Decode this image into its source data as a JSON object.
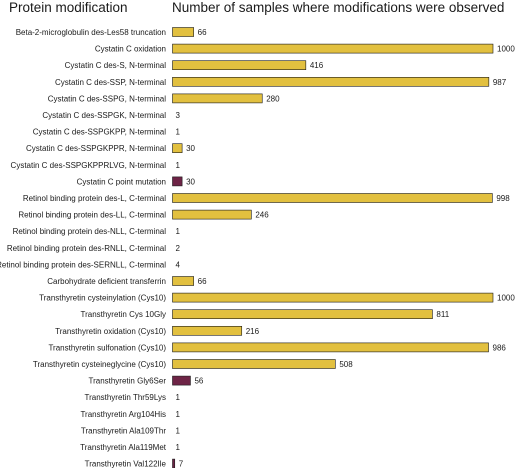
{
  "chart_data": {
    "type": "bar",
    "orientation": "horizontal",
    "header_left": "Protein modification",
    "header_right": "Number of samples where modifications were observed",
    "xlim": [
      0,
      1000
    ],
    "colors": {
      "default": "#e2c03f",
      "highlight": "#6e2446",
      "stroke": "#1a1a1a"
    },
    "categories": [
      "Beta-2-microglobulin des-Les58 truncation",
      "Cystatin C oxidation",
      "Cystatin C des-S, N-terminal",
      "Cystatin C des-SSP, N-terminal",
      "Cystatin C des-SSPG, N-terminal",
      "Cystatin C des-SSPGK, N-terminal",
      "Cystatin C des-SSPGKPP, N-terminal",
      "Cystatin C des-SSPGKPPR, N-terminal",
      "Cystatin C des-SSPGKPPRLVG, N-terminal",
      "Cystatin C point mutation",
      "Retinol binding protein des-L, C-terminal",
      "Retinol binding protein des-LL, C-terminal",
      "Retinol binding protein des-NLL, C-terminal",
      "Retinol binding protein des-RNLL, C-terminal",
      "Retinol binding protein des-SERNLL, C-terminal",
      "Carbohydrate deficient transferrin",
      "Transthyretin cysteinylation (Cys10)",
      "Transthyretin Cys 10Gly",
      "Transthyretin oxidation (Cys10)",
      "Transthyretin sulfonation (Cys10)",
      "Transthyretin cysteineglycine (Cys10)",
      "Transthyretin Gly6Ser",
      "Transthyretin Thr59Lys",
      "Transthyretin Arg104His",
      "Transthyretin Ala109Thr",
      "Transthyretin Ala119Met",
      "Transthyretin Val122Ile"
    ],
    "values": [
      66,
      1000,
      416,
      987,
      280,
      3,
      1,
      30,
      1,
      30,
      998,
      246,
      1,
      2,
      4,
      66,
      1000,
      811,
      216,
      986,
      508,
      56,
      1,
      1,
      1,
      1,
      7
    ],
    "value_labels": [
      "66",
      "1000",
      "416",
      "987",
      "280",
      "3",
      "1",
      "30",
      "1",
      "30",
      "998",
      "246",
      "1",
      "2",
      "4",
      "66",
      "1000",
      "811",
      "216",
      "986",
      "508",
      "56",
      "1",
      "1",
      "1",
      "1",
      "7"
    ],
    "highlight": [
      false,
      false,
      false,
      false,
      false,
      false,
      false,
      false,
      false,
      true,
      false,
      false,
      false,
      false,
      false,
      false,
      false,
      false,
      false,
      false,
      false,
      true,
      false,
      false,
      false,
      false,
      true
    ]
  }
}
